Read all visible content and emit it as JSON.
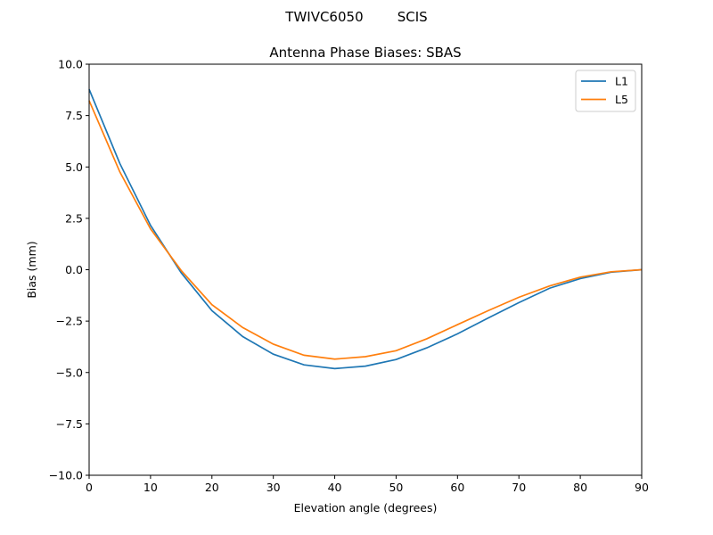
{
  "chart_data": {
    "type": "line",
    "suptitle": "TWIVC6050        SCIS",
    "title": "Antenna Phase Biases: SBAS",
    "xlabel": "Elevation angle (degrees)",
    "ylabel": "Bias (mm)",
    "xlim": [
      0,
      90
    ],
    "ylim": [
      -10,
      10
    ],
    "xticks": [
      0,
      10,
      20,
      30,
      40,
      50,
      60,
      70,
      80,
      90
    ],
    "yticks": [
      -10.0,
      -7.5,
      -5.0,
      -2.5,
      0.0,
      2.5,
      5.0,
      7.5,
      10.0
    ],
    "ytick_labels": [
      "−10.0",
      "−7.5",
      "−5.0",
      "−2.5",
      "0.0",
      "2.5",
      "5.0",
      "7.5",
      "10.0"
    ],
    "grid": false,
    "legend_position": "top-right",
    "x": [
      0,
      5,
      10,
      15,
      20,
      25,
      30,
      35,
      40,
      45,
      50,
      55,
      60,
      65,
      70,
      75,
      80,
      85,
      90
    ],
    "series": [
      {
        "name": "L1",
        "color": "#1f77b4",
        "values": [
          8.78,
          5.17,
          2.16,
          -0.15,
          -1.99,
          -3.25,
          -4.11,
          -4.63,
          -4.81,
          -4.69,
          -4.37,
          -3.8,
          -3.12,
          -2.35,
          -1.6,
          -0.9,
          -0.43,
          -0.12,
          0.0
        ]
      },
      {
        "name": "L5",
        "color": "#ff7f0e",
        "values": [
          8.23,
          4.76,
          1.99,
          -0.04,
          -1.7,
          -2.81,
          -3.62,
          -4.16,
          -4.35,
          -4.23,
          -3.94,
          -3.36,
          -2.67,
          -1.99,
          -1.34,
          -0.79,
          -0.36,
          -0.1,
          0.0
        ]
      }
    ]
  }
}
